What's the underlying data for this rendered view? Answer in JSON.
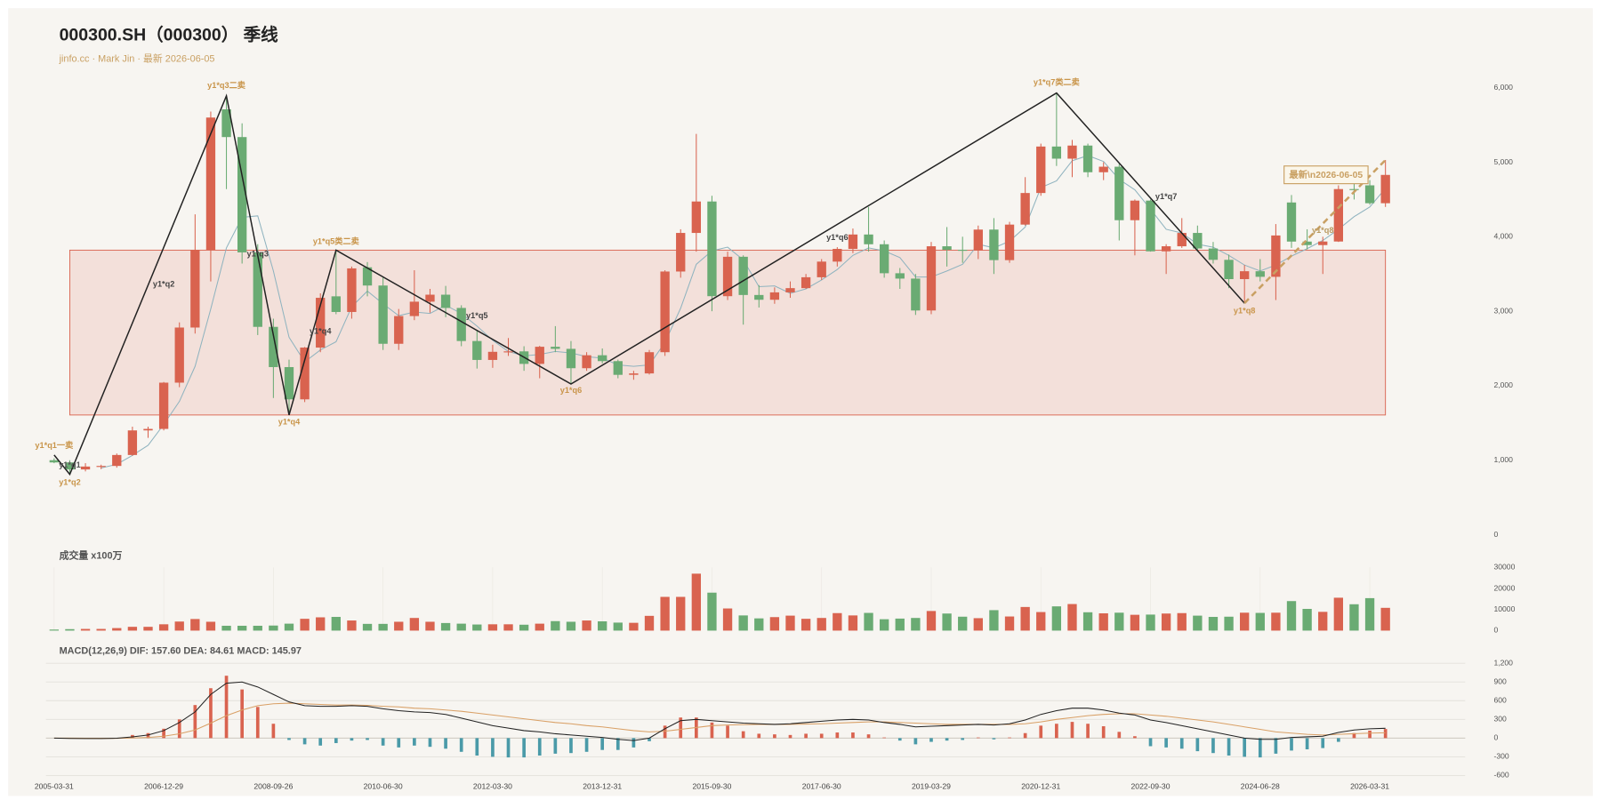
{
  "chart_data": [
    {
      "type": "candlestick",
      "title": "000300.SH（000300） 季线",
      "subtitle": "jinfo.cc · Mark Jin · 最新 2026-06-05",
      "categories": [
        "2005-03-31",
        null,
        null,
        null,
        null,
        null,
        null,
        "2006-12-29",
        null,
        null,
        null,
        null,
        null,
        null,
        "2008-09-26",
        null,
        null,
        null,
        null,
        null,
        null,
        "2010-06-30",
        null,
        null,
        null,
        null,
        null,
        null,
        "2012-03-30",
        null,
        null,
        null,
        null,
        null,
        null,
        "2013-12-31",
        null,
        null,
        null,
        null,
        null,
        null,
        "2015-09-30",
        null,
        null,
        null,
        null,
        null,
        null,
        "2017-06-30",
        null,
        null,
        null,
        null,
        null,
        null,
        "2019-03-29",
        null,
        null,
        null,
        null,
        null,
        null,
        "2020-12-31",
        null,
        null,
        null,
        null,
        null,
        null,
        "2022-09-30",
        null,
        null,
        null,
        null,
        null,
        null,
        "2024-06-28",
        null,
        null,
        null,
        null,
        null,
        null,
        "2026-03-31",
        null
      ],
      "ohlc": [
        [
          1000,
          1025,
          960,
          970
        ],
        [
          970,
          1000,
          807,
          876
        ],
        [
          876,
          960,
          850,
          915
        ],
        [
          915,
          940,
          880,
          923
        ],
        [
          923,
          1090,
          900,
          1070
        ],
        [
          1070,
          1450,
          1060,
          1400
        ],
        [
          1400,
          1450,
          1300,
          1420
        ],
        [
          1420,
          2050,
          1400,
          2041
        ],
        [
          2041,
          2850,
          1980,
          2781
        ],
        [
          2781,
          4300,
          2700,
          3820
        ],
        [
          3820,
          5680,
          3400,
          5600
        ],
        [
          5710,
          5891,
          4640,
          5338
        ],
        [
          5338,
          5522,
          3640,
          3790
        ],
        [
          3790,
          3900,
          2680,
          2790
        ],
        [
          2790,
          2900,
          1835,
          2250
        ],
        [
          2250,
          2350,
          1607,
          1817
        ],
        [
          1817,
          2520,
          1780,
          2512
        ],
        [
          2512,
          3240,
          2450,
          3180
        ],
        [
          3200,
          3803,
          2960,
          2990
        ],
        [
          2990,
          3600,
          2900,
          3575
        ],
        [
          3590,
          3660,
          3200,
          3345
        ],
        [
          3345,
          3450,
          2480,
          2563
        ],
        [
          2563,
          3030,
          2480,
          2935
        ],
        [
          2935,
          3550,
          2880,
          3128
        ],
        [
          3128,
          3300,
          2980,
          3222
        ],
        [
          3222,
          3340,
          2920,
          3044
        ],
        [
          3044,
          3080,
          2530,
          2600
        ],
        [
          2600,
          2750,
          2230,
          2346
        ],
        [
          2346,
          2550,
          2240,
          2455
        ],
        [
          2455,
          2640,
          2400,
          2461
        ],
        [
          2461,
          2530,
          2200,
          2293
        ],
        [
          2293,
          2535,
          2100,
          2523
        ],
        [
          2523,
          2800,
          2450,
          2495
        ],
        [
          2495,
          2600,
          2023,
          2235
        ],
        [
          2235,
          2450,
          2200,
          2409
        ],
        [
          2409,
          2500,
          2300,
          2330
        ],
        [
          2330,
          2350,
          2100,
          2146
        ],
        [
          2146,
          2200,
          2080,
          2165
        ],
        [
          2165,
          2480,
          2150,
          2450
        ],
        [
          2450,
          3550,
          2400,
          3533
        ],
        [
          3533,
          4100,
          3450,
          4051
        ],
        [
          4051,
          5380,
          3800,
          4473
        ],
        [
          4473,
          4550,
          3000,
          3202
        ],
        [
          3202,
          3800,
          3150,
          3731
        ],
        [
          3731,
          3750,
          2820,
          3218
        ],
        [
          3218,
          3350,
          3050,
          3154
        ],
        [
          3154,
          3320,
          3100,
          3253
        ],
        [
          3253,
          3400,
          3180,
          3310
        ],
        [
          3310,
          3500,
          3300,
          3456
        ],
        [
          3456,
          3700,
          3420,
          3666
        ],
        [
          3666,
          3860,
          3600,
          3837
        ],
        [
          3837,
          4110,
          3780,
          4030
        ],
        [
          4030,
          4400,
          3800,
          3899
        ],
        [
          3899,
          3950,
          3450,
          3510
        ],
        [
          3510,
          3580,
          3300,
          3438
        ],
        [
          3438,
          3500,
          2950,
          3010
        ],
        [
          3010,
          3930,
          2960,
          3872
        ],
        [
          3872,
          4130,
          3600,
          3825
        ],
        [
          3825,
          4000,
          3650,
          3814
        ],
        [
          3814,
          4150,
          3700,
          4096
        ],
        [
          4096,
          4250,
          3500,
          3686
        ],
        [
          3686,
          4200,
          3650,
          4163
        ],
        [
          4163,
          4800,
          4150,
          4587
        ],
        [
          4587,
          5250,
          4550,
          5211
        ],
        [
          5211,
          5930,
          4950,
          5048
        ],
        [
          5048,
          5300,
          4800,
          5224
        ],
        [
          5224,
          5250,
          4800,
          4866
        ],
        [
          4866,
          5000,
          4760,
          4940
        ],
        [
          4940,
          4980,
          3950,
          4222
        ],
        [
          4222,
          4500,
          3750,
          4485
        ],
        [
          4485,
          4500,
          3800,
          3804
        ],
        [
          3804,
          3900,
          3500,
          3872
        ],
        [
          3872,
          4250,
          3850,
          4051
        ],
        [
          4051,
          4150,
          3800,
          3842
        ],
        [
          3842,
          3930,
          3640,
          3690
        ],
        [
          3690,
          3760,
          3310,
          3431
        ],
        [
          3431,
          3620,
          3108,
          3537
        ],
        [
          3537,
          3700,
          3400,
          3462
        ],
        [
          3462,
          4170,
          3150,
          4017
        ],
        [
          4460,
          4560,
          3850,
          3935
        ],
        [
          3935,
          4100,
          3830,
          3888
        ],
        [
          3888,
          4000,
          3500,
          3936
        ],
        [
          3936,
          4690,
          3930,
          4640
        ],
        [
          4640,
          4720,
          4500,
          4630
        ],
        [
          4690,
          4760,
          4430,
          4450
        ],
        [
          4450,
          5030,
          4400,
          4830
        ]
      ],
      "ma": [
        null,
        null,
        null,
        896,
        945,
        1065,
        1200,
        1480,
        1790,
        2260,
        3030,
        3850,
        4260,
        4280,
        3540,
        2650,
        2320,
        2480,
        2590,
        3060,
        3270,
        3100,
        2940,
        2990,
        2970,
        3080,
        2970,
        2800,
        2610,
        2460,
        2400,
        2420,
        2460,
        2440,
        2390,
        2370,
        2280,
        2260,
        2280,
        2580,
        3040,
        3630,
        3810,
        3860,
        3690,
        3330,
        3340,
        3240,
        3300,
        3420,
        3560,
        3750,
        3850,
        3810,
        3720,
        3460,
        3460,
        3540,
        3630,
        3900,
        3850,
        3940,
        4130,
        4660,
        4750,
        5020,
        5090,
        5010,
        4770,
        4630,
        4370,
        4100,
        4050,
        3900,
        3860,
        3750,
        3620,
        3540,
        3620,
        3740,
        3840,
        3950,
        4100,
        4270,
        4400,
        4650
      ],
      "up_color": "#d9634f",
      "down_color": "#6aab73",
      "ma_color": "#8fb3bf",
      "ylim": [
        0,
        6000
      ],
      "yticks": [
        0,
        {
          "value": 1000,
          "label": "1,000"
        },
        {
          "value": 2000,
          "label": "2,000"
        },
        {
          "value": 3000,
          "label": "3,000"
        },
        {
          "value": 4000,
          "label": "4,000"
        },
        {
          "value": 5000,
          "label": "5,000"
        },
        {
          "value": 6000,
          "label": "6,000"
        }
      ],
      "grid": false,
      "zone": {
        "x": [
          1,
          85
        ],
        "values": [
          1607,
          3820
        ],
        "color": "#d9634f"
      },
      "bi": {
        "x": [
          0,
          1,
          11,
          15,
          18,
          33,
          64,
          76
        ],
        "values": [
          1070,
          810,
          5891,
          1607,
          3820,
          2023,
          5930,
          3108
        ],
        "color": "#222222"
      },
      "latest_line": {
        "x": [
          76,
          85
        ],
        "values": [
          3108,
          5030
        ],
        "color": "#c9a063"
      },
      "annotations": [
        {
          "text": "y1*q1一卖",
          "x": 0,
          "value": 1192,
          "color": "#c9954a"
        },
        {
          "text": "y1*q2",
          "x": 1,
          "value": 699,
          "color": "#c9954a"
        },
        {
          "text": "y1*q1",
          "x": 1,
          "value": 932,
          "color": "#555555"
        },
        {
          "text": "y1*q2",
          "x": 7,
          "value": 3356,
          "color": "#444444"
        },
        {
          "text": "y1*q3二卖",
          "x": 11,
          "value": 6027,
          "color": "#c9954a"
        },
        {
          "text": "y1*q3",
          "x": 13,
          "value": 3767,
          "color": "#444444"
        },
        {
          "text": "y1*q4",
          "x": 15,
          "value": 1507,
          "color": "#c9954a"
        },
        {
          "text": "y1*q4",
          "x": 17,
          "value": 2726,
          "color": "#444444"
        },
        {
          "text": "y1*q5类二卖",
          "x": 18,
          "value": 3932,
          "color": "#c9954a"
        },
        {
          "text": "y1*q5",
          "x": 27,
          "value": 2932,
          "color": "#444444"
        },
        {
          "text": "y1*q6",
          "x": 33,
          "value": 1932,
          "color": "#c9954a"
        },
        {
          "text": "y1*q6",
          "x": 50,
          "value": 3986,
          "color": "#444444"
        },
        {
          "text": "y1*q7类二卖",
          "x": 64,
          "value": 6068,
          "color": "#c9954a"
        },
        {
          "text": "y1*q7",
          "x": 71,
          "value": 4534,
          "color": "#444444"
        },
        {
          "text": "y1*q8",
          "x": 76,
          "value": 3000,
          "color": "#c9954a"
        },
        {
          "text": "y1*q8",
          "x": 81,
          "value": 4082,
          "color": "#b99a60"
        }
      ],
      "latest_label": {
        "text": "最新\\n2026-06-05",
        "x": 81.2,
        "value": 4822,
        "color": "#c9a063"
      }
    },
    {
      "type": "volume",
      "title": "成交量 x100万",
      "values": [
        500,
        700,
        800,
        800,
        1200,
        1800,
        1800,
        3000,
        4300,
        5500,
        4200,
        2300,
        2300,
        2300,
        2400,
        3300,
        5600,
        6300,
        6500,
        4800,
        3200,
        3200,
        4200,
        6000,
        4200,
        3600,
        3300,
        2900,
        3000,
        3000,
        2800,
        3300,
        4500,
        4200,
        4800,
        4400,
        3800,
        3700,
        7000,
        16000,
        16000,
        27000,
        18000,
        10500,
        7200,
        5800,
        6400,
        7100,
        5600,
        6000,
        8300,
        7200,
        8400,
        5400,
        5700,
        6000,
        9300,
        8100,
        6600,
        5900,
        9700,
        6700,
        11200,
        8800,
        11500,
        12600,
        8700,
        8200,
        8500,
        7500,
        7600,
        8100,
        8300,
        7100,
        6500,
        6600,
        8500,
        8400,
        8500,
        14000,
        10300,
        8900,
        15600,
        12500,
        15400,
        10800
      ],
      "ylim": [
        0,
        30000
      ],
      "yticks": [
        0,
        10000,
        20000,
        30000
      ],
      "grid": false
    },
    {
      "type": "macd",
      "title": "MACD(12,26,9) DIF: 157.60 DEA: 84.61 MACD: 145.97",
      "dif": [
        0,
        -5,
        -8,
        -8,
        -2,
        20,
        50,
        120,
        250,
        420,
        700,
        880,
        900,
        820,
        700,
        580,
        520,
        510,
        510,
        520,
        510,
        470,
        440,
        420,
        410,
        380,
        320,
        260,
        200,
        160,
        120,
        100,
        70,
        50,
        30,
        10,
        -20,
        -40,
        0,
        150,
        280,
        300,
        280,
        260,
        240,
        230,
        220,
        230,
        250,
        270,
        290,
        300,
        290,
        250,
        220,
        180,
        190,
        200,
        210,
        220,
        210,
        230,
        290,
        380,
        440,
        480,
        480,
        450,
        400,
        370,
        290,
        250,
        200,
        150,
        100,
        50,
        0,
        -20,
        -20,
        10,
        20,
        30,
        90,
        130,
        150,
        157.6
      ],
      "dea": [
        0,
        0,
        -2,
        -3,
        -3,
        2,
        10,
        30,
        70,
        130,
        240,
        360,
        450,
        520,
        550,
        560,
        550,
        540,
        530,
        530,
        525,
        510,
        500,
        480,
        470,
        450,
        430,
        400,
        370,
        340,
        310,
        280,
        250,
        230,
        200,
        180,
        150,
        120,
        100,
        110,
        140,
        170,
        200,
        210,
        215,
        220,
        220,
        220,
        225,
        230,
        240,
        250,
        260,
        260,
        250,
        240,
        230,
        220,
        220,
        220,
        220,
        220,
        230,
        260,
        300,
        330,
        360,
        380,
        390,
        390,
        370,
        350,
        320,
        290,
        260,
        220,
        180,
        140,
        100,
        80,
        60,
        50,
        60,
        70,
        80,
        84.61
      ],
      "hist": [
        0,
        0,
        0,
        0,
        0,
        50,
        80,
        150,
        300,
        530,
        800,
        1000,
        780,
        500,
        230,
        -30,
        -100,
        -120,
        -80,
        -40,
        -30,
        -120,
        -150,
        -120,
        -140,
        -170,
        -220,
        -280,
        -300,
        -310,
        -310,
        -280,
        -250,
        -240,
        -220,
        -190,
        -190,
        -150,
        -50,
        200,
        330,
        330,
        250,
        200,
        110,
        70,
        60,
        50,
        70,
        70,
        90,
        90,
        60,
        10,
        -40,
        -100,
        -60,
        -40,
        -30,
        10,
        -20,
        10,
        80,
        200,
        230,
        260,
        230,
        190,
        100,
        30,
        -130,
        -150,
        -170,
        -210,
        -240,
        -280,
        -300,
        -310,
        -250,
        -200,
        -180,
        -160,
        -60,
        80,
        120,
        145.97
      ],
      "dif_color": "#222222",
      "dea_color": "#d9a066",
      "up_color": "#d9634f",
      "down_color": "#4a9aa8",
      "ylim": [
        -600,
        1200
      ],
      "yticks": [
        -600,
        -300,
        0,
        300,
        600,
        900,
        {
          "value": 1200,
          "label": "1,200"
        }
      ],
      "grid": true
    }
  ]
}
